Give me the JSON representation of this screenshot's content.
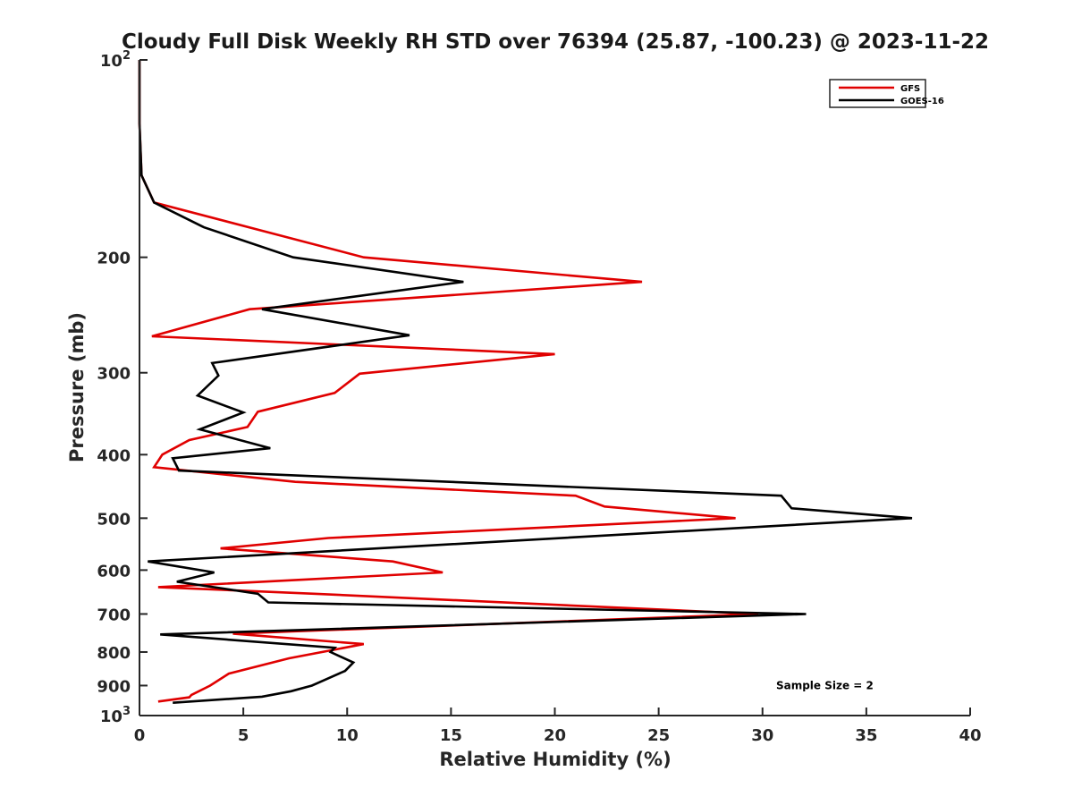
{
  "chart_data": {
    "type": "line",
    "title": "Cloudy Full Disk Weekly RH STD over 76394 (25.87, -100.23) @ 2023-11-22",
    "xlabel": "Relative Humidity (%)",
    "ylabel": "Pressure (mb)",
    "xlim": [
      0,
      40
    ],
    "ylim": [
      100,
      1000
    ],
    "yscale": "log",
    "y_reversed": true,
    "grid": false,
    "legend_position": "top-right",
    "x_ticks": [
      "0",
      "5",
      "10",
      "15",
      "20",
      "25",
      "30",
      "35",
      "40"
    ],
    "y_ticks": [
      {
        "value": 100,
        "base": "10",
        "exp": "2"
      },
      {
        "value": 200,
        "label": "200"
      },
      {
        "value": 300,
        "label": "300"
      },
      {
        "value": 400,
        "label": "400"
      },
      {
        "value": 500,
        "label": "500"
      },
      {
        "value": 600,
        "label": "600"
      },
      {
        "value": 700,
        "label": "700"
      },
      {
        "value": 800,
        "label": "800"
      },
      {
        "value": 900,
        "label": "900"
      },
      {
        "value": 1000,
        "base": "10",
        "exp": "3"
      }
    ],
    "series": [
      {
        "name": "GFS",
        "color": "#e00000",
        "points": [
          [
            0,
            100
          ],
          [
            0,
            125
          ],
          [
            0.1,
            150
          ],
          [
            0.7,
            165
          ],
          [
            10.8,
            200
          ],
          [
            24.2,
            218
          ],
          [
            5.3,
            240
          ],
          [
            0.6,
            264
          ],
          [
            20.0,
            281
          ],
          [
            10.6,
            301
          ],
          [
            9.4,
            322
          ],
          [
            5.7,
            344
          ],
          [
            5.2,
            363
          ],
          [
            2.4,
            380
          ],
          [
            1.1,
            400
          ],
          [
            0.7,
            418
          ],
          [
            7.5,
            440
          ],
          [
            21.0,
            462
          ],
          [
            22.4,
            480
          ],
          [
            28.7,
            500
          ],
          [
            9.1,
            536
          ],
          [
            3.9,
            556
          ],
          [
            12.2,
            582
          ],
          [
            14.6,
            605
          ],
          [
            0.9,
            637
          ],
          [
            8.4,
            652
          ],
          [
            29.8,
            700
          ],
          [
            4.5,
            750
          ],
          [
            10.8,
            778
          ],
          [
            7.2,
            818
          ],
          [
            4.3,
            863
          ],
          [
            3.4,
            900
          ],
          [
            2.5,
            930
          ],
          [
            2.4,
            938
          ],
          [
            0.9,
            952
          ]
        ]
      },
      {
        "name": "GOES-16",
        "color": "#000000",
        "points": [
          [
            0,
            100
          ],
          [
            0,
            125
          ],
          [
            0.1,
            150
          ],
          [
            0.7,
            165
          ],
          [
            3.1,
            180
          ],
          [
            7.4,
            200
          ],
          [
            15.6,
            218
          ],
          [
            5.9,
            240
          ],
          [
            13.0,
            263
          ],
          [
            3.5,
            290
          ],
          [
            3.8,
            303
          ],
          [
            2.8,
            325
          ],
          [
            5.0,
            345
          ],
          [
            2.9,
            366
          ],
          [
            6.3,
            391
          ],
          [
            1.6,
            405
          ],
          [
            1.9,
            423
          ],
          [
            30.9,
            462
          ],
          [
            31.4,
            483
          ],
          [
            37.2,
            500
          ],
          [
            0.4,
            582
          ],
          [
            3.6,
            605
          ],
          [
            1.8,
            625
          ],
          [
            5.7,
            652
          ],
          [
            6.2,
            672
          ],
          [
            32.1,
            700
          ],
          [
            1.0,
            752
          ],
          [
            9.4,
            788
          ],
          [
            9.2,
            800
          ],
          [
            10.3,
            830
          ],
          [
            9.9,
            855
          ],
          [
            8.3,
            900
          ],
          [
            7.3,
            918
          ],
          [
            5.9,
            936
          ],
          [
            1.6,
            956
          ]
        ]
      }
    ],
    "annotations": [
      {
        "text": "Sample Size = 2",
        "x": 33.0,
        "y": 900
      }
    ]
  }
}
